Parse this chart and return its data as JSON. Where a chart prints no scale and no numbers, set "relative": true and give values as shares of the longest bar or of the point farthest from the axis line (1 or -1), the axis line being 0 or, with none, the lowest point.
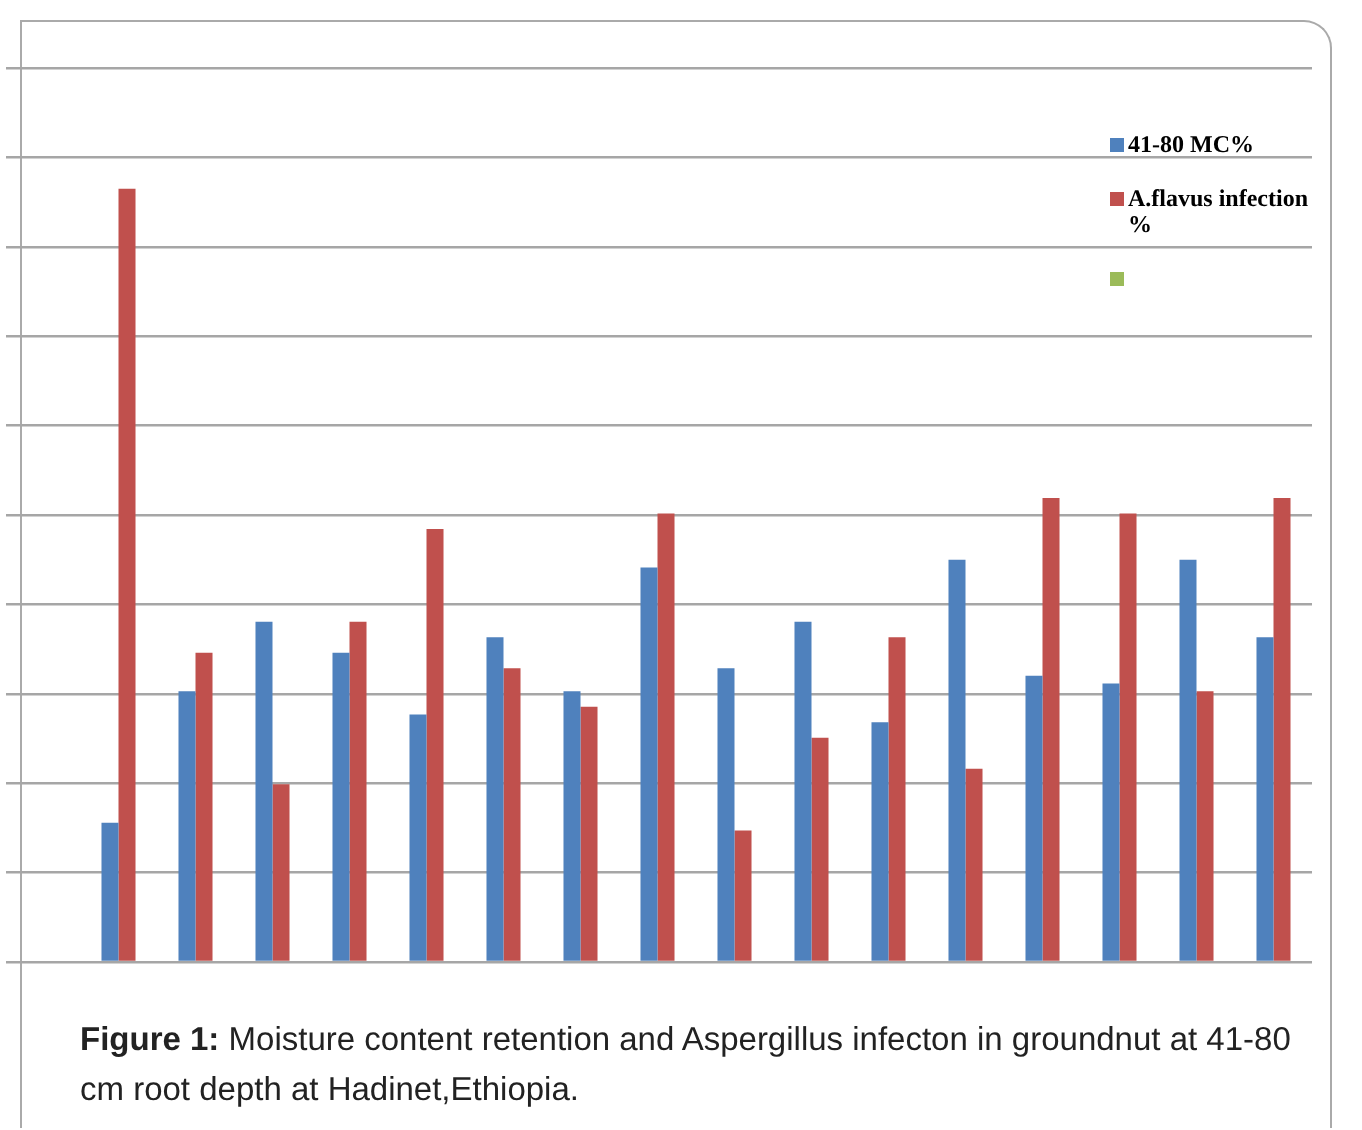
{
  "chart_data": {
    "type": "bar",
    "relative": true,
    "grid": "y",
    "legend": "top right",
    "categories": [
      null,
      null,
      null,
      null,
      null,
      null,
      null,
      null,
      null,
      null,
      null,
      null,
      null,
      null,
      null,
      null
    ],
    "series": [
      {
        "name": "41-80 MC%",
        "color": "#4f81bd",
        "values": [
          0.18,
          0.35,
          0.44,
          0.4,
          0.32,
          0.42,
          0.35,
          0.51,
          0.38,
          0.44,
          0.31,
          0.52,
          0.37,
          0.36,
          0.52,
          0.42
        ]
      },
      {
        "name": "A.flavus infection %",
        "color": "#c0504d",
        "values": [
          1,
          0.4,
          0.23,
          0.44,
          0.56,
          0.38,
          0.33,
          0.58,
          0.17,
          0.29,
          0.42,
          0.25,
          0.6,
          0.58,
          0.35,
          0.6
        ]
      }
    ],
    "annotations": [
      "Figure 1: Moisture content retention and Aspergillus infecton in groundnut at 41-80 cm root depth at Hadinet,Ethiopia."
    ]
  }
}
